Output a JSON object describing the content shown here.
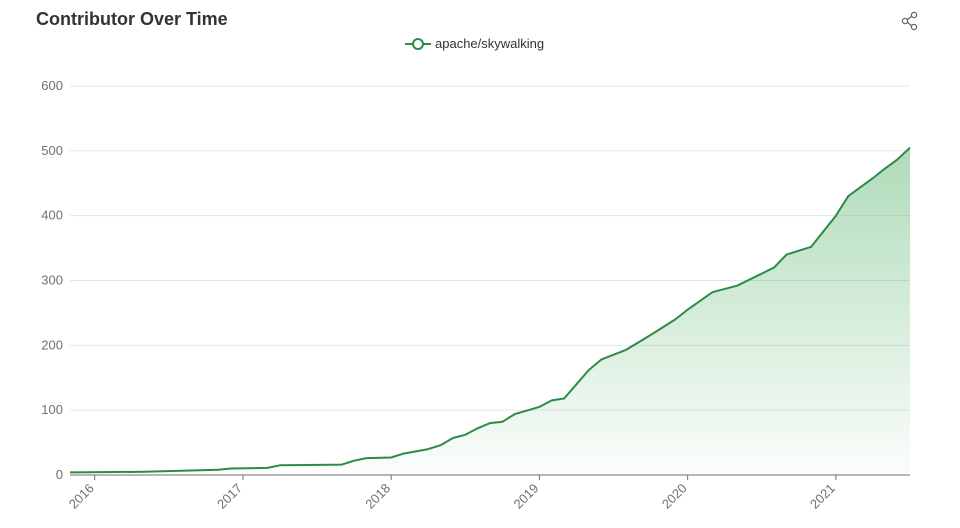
{
  "title": "Contributor Over Time",
  "icons": {
    "share": "share-icon"
  },
  "colors": {
    "line": "#2e8b47",
    "fill": "#4caf62",
    "grid": "#e0e6f1",
    "axis": "#6e7079"
  },
  "chart_data": {
    "type": "area",
    "title": "Contributor Over Time",
    "xlabel": "",
    "ylabel": "",
    "x_type": "time",
    "xlim": [
      "2015-11",
      "2021-07"
    ],
    "ylim": [
      0,
      600
    ],
    "y_ticks": [
      "0",
      "100",
      "200",
      "300",
      "400",
      "500",
      "600"
    ],
    "x_ticks": [
      "2016",
      "2017",
      "2018",
      "2019",
      "2020",
      "2021"
    ],
    "grid": true,
    "legend": "top-center",
    "series": [
      {
        "name": "apache/skywalking",
        "points": [
          [
            "2015-11",
            4
          ],
          [
            "2016-05",
            5
          ],
          [
            "2016-11",
            8
          ],
          [
            "2016-12",
            10
          ],
          [
            "2017-03",
            11
          ],
          [
            "2017-04",
            15
          ],
          [
            "2017-09",
            16
          ],
          [
            "2017-10",
            22
          ],
          [
            "2017-11",
            26
          ],
          [
            "2018-01",
            27
          ],
          [
            "2018-02",
            33
          ],
          [
            "2018-04",
            40
          ],
          [
            "2018-05",
            46
          ],
          [
            "2018-06",
            57
          ],
          [
            "2018-07",
            62
          ],
          [
            "2018-08",
            72
          ],
          [
            "2018-09",
            80
          ],
          [
            "2018-10",
            82
          ],
          [
            "2018-11",
            94
          ],
          [
            "2019-01",
            105
          ],
          [
            "2019-02",
            115
          ],
          [
            "2019-03",
            118
          ],
          [
            "2019-04",
            140
          ],
          [
            "2019-05",
            162
          ],
          [
            "2019-06",
            178
          ],
          [
            "2019-08",
            193
          ],
          [
            "2019-10",
            216
          ],
          [
            "2019-12",
            240
          ],
          [
            "2020-01",
            255
          ],
          [
            "2020-03",
            282
          ],
          [
            "2020-05",
            292
          ],
          [
            "2020-08",
            320
          ],
          [
            "2020-09",
            340
          ],
          [
            "2020-11",
            352
          ],
          [
            "2021-01",
            400
          ],
          [
            "2021-02",
            430
          ],
          [
            "2021-04",
            458
          ],
          [
            "2021-05",
            473
          ],
          [
            "2021-06",
            487
          ],
          [
            "2021-07",
            505
          ]
        ]
      }
    ]
  }
}
